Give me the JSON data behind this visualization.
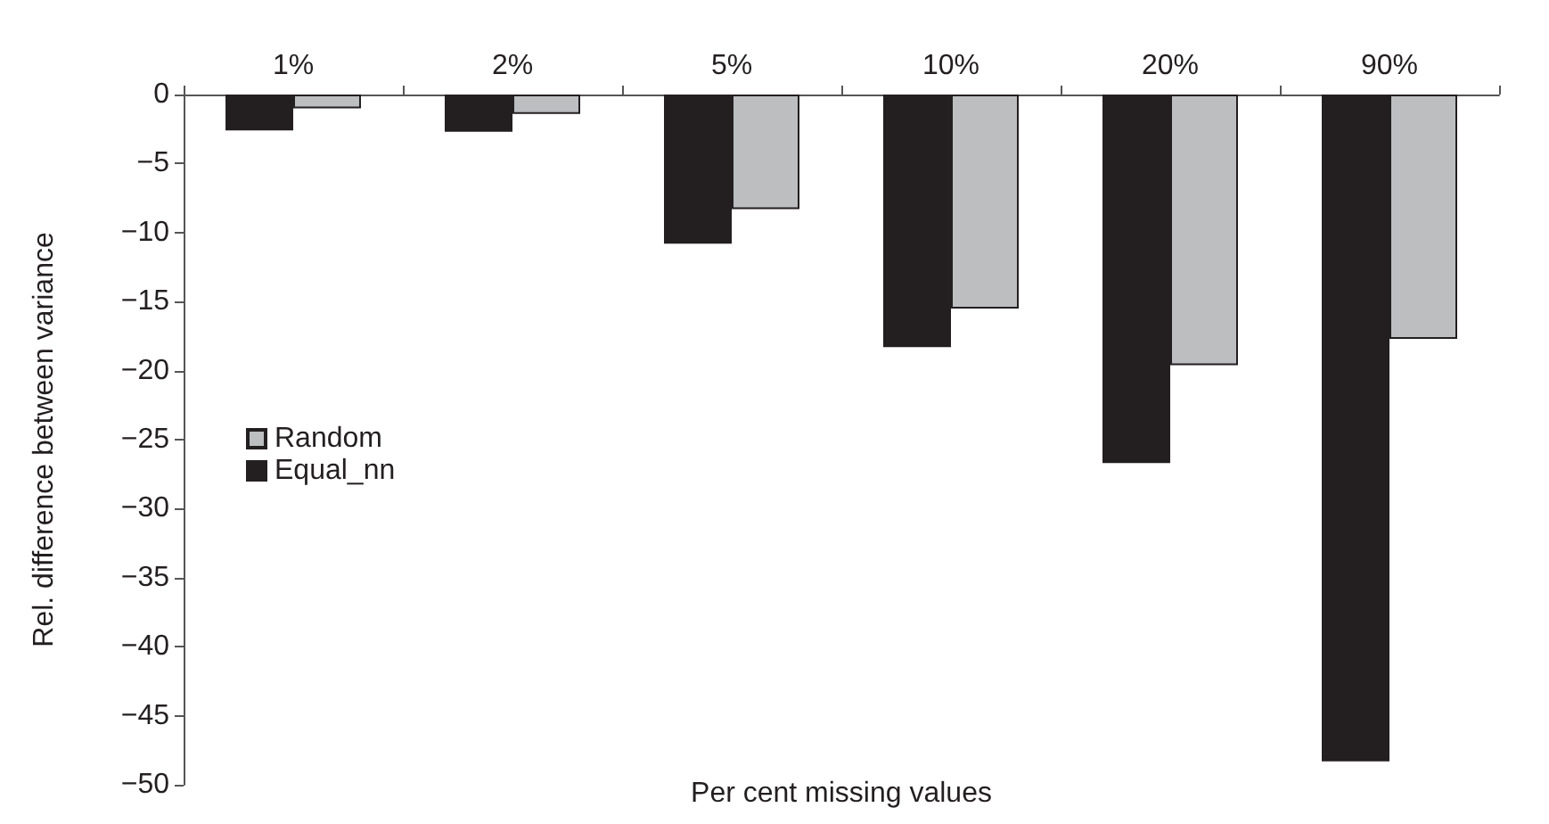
{
  "chart_data": {
    "type": "bar",
    "xlabel": "Per cent missing values",
    "ylabel": "Rel. difference between variance",
    "categories": [
      "1%",
      "2%",
      "5%",
      "10%",
      "20%",
      "90%"
    ],
    "series": [
      {
        "name": "Equal_nn",
        "color": "#231f20",
        "values": [
          -2.6,
          -2.7,
          -10.8,
          -18.3,
          -26.7,
          -48.3
        ]
      },
      {
        "name": "Random",
        "color": "#bcbec0",
        "values": [
          -1.0,
          -1.4,
          -8.3,
          -15.5,
          -19.6,
          -17.7
        ]
      }
    ],
    "ylim": [
      -50,
      0
    ],
    "yticks": [
      0,
      -5,
      -10,
      -15,
      -20,
      -25,
      -30,
      -35,
      -40,
      -45,
      -50
    ],
    "grid": false,
    "legend": "left"
  }
}
